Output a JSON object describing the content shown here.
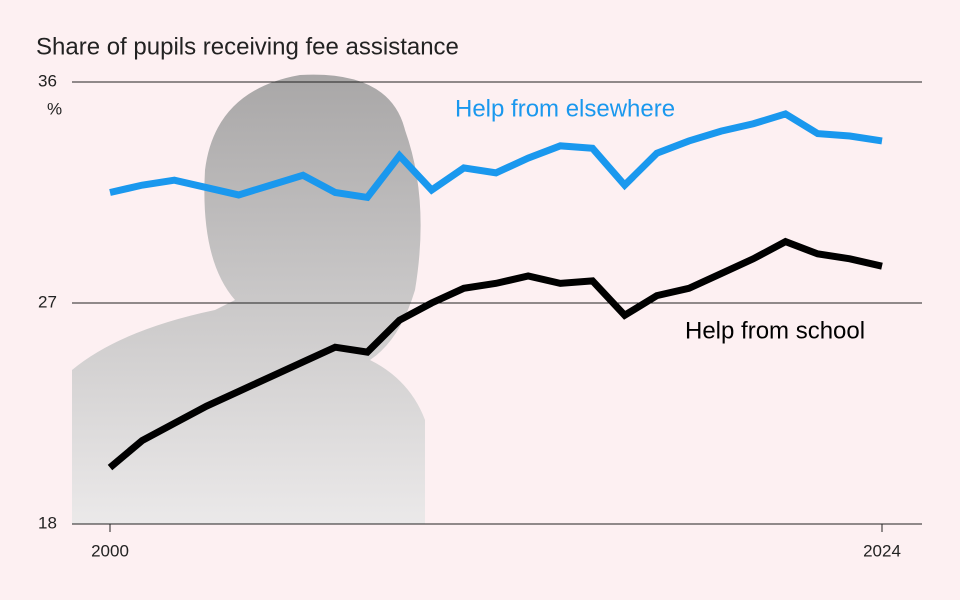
{
  "chart_data": {
    "type": "line",
    "title": "Share of pupils receiving fee assistance",
    "unit": "%",
    "x": [
      2000,
      2001,
      2002,
      2003,
      2004,
      2005,
      2006,
      2007,
      2008,
      2009,
      2010,
      2011,
      2012,
      2013,
      2014,
      2015,
      2016,
      2017,
      2018,
      2019,
      2020,
      2021,
      2022,
      2023,
      2024
    ],
    "series": [
      {
        "name": "Help from elsewhere",
        "color": "#1a98ee",
        "values": [
          31.5,
          31.8,
          32.0,
          31.7,
          31.4,
          31.8,
          32.2,
          31.5,
          31.3,
          33.0,
          31.6,
          32.5,
          32.3,
          32.9,
          33.4,
          33.3,
          31.8,
          33.1,
          33.6,
          34.0,
          34.3,
          34.7,
          33.9,
          33.8,
          33.6
        ]
      },
      {
        "name": "Help from school",
        "color": "#000000",
        "values": [
          20.3,
          21.4,
          22.1,
          22.8,
          23.4,
          24.0,
          24.6,
          25.2,
          25.0,
          26.3,
          27.0,
          27.6,
          27.8,
          28.1,
          27.8,
          27.9,
          26.5,
          27.3,
          27.6,
          28.2,
          28.8,
          29.5,
          29.0,
          28.8,
          28.5
        ]
      }
    ],
    "xlim": [
      2000,
      2024
    ],
    "xticks": [
      2000,
      2024
    ],
    "ylim": [
      18,
      36
    ],
    "yticks": [
      18,
      27,
      36
    ],
    "grid": true
  }
}
